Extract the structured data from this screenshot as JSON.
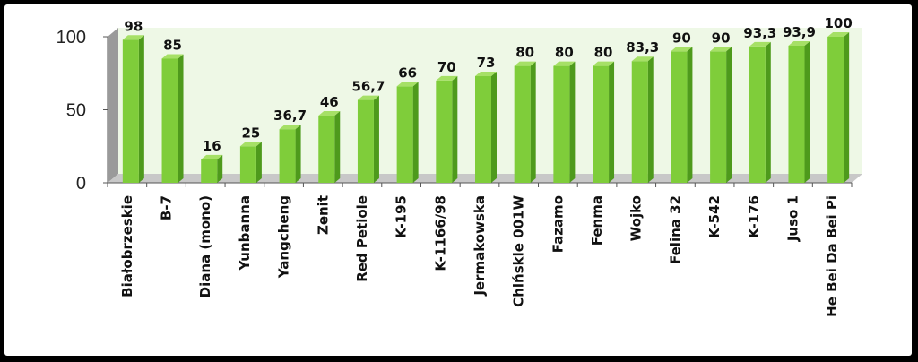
{
  "chart_data": {
    "type": "bar",
    "categories": [
      "Białobrzeskie",
      "B-7",
      "Diana (mono)",
      "Yunbanna",
      "Yangcheng",
      "Zenit",
      "Red Petiole",
      "K-195",
      "K-1166/98",
      "Jermakowska",
      "Chińskie 001W",
      "Fazamo",
      "Fenma",
      "Wojko",
      "Felina 32",
      "K-542",
      "K-176",
      "Juso 1",
      "He Bei Da Bei Pi"
    ],
    "values": [
      98,
      85,
      16,
      25,
      36.7,
      46,
      56.7,
      66,
      70,
      73,
      80,
      80,
      80,
      83.3,
      90,
      90,
      93.3,
      93.9,
      100
    ],
    "data_labels": [
      "98",
      "85",
      "16",
      "25",
      "36,7",
      "46",
      "56,7",
      "66",
      "70",
      "73",
      "80",
      "80",
      "80",
      "83,3",
      "90",
      "90",
      "93,3",
      "93,9",
      "100"
    ],
    "y_ticks": [
      "0",
      "50",
      "100"
    ],
    "ylim": [
      0,
      100
    ],
    "grid": false,
    "legend": "none",
    "title": "",
    "xlabel": "",
    "ylabel": "",
    "colors": {
      "bar_front": "#7fcd3a",
      "bar_side": "#4e9a1c",
      "bar_top": "#a6e066",
      "wall": "#eef8e6",
      "wall_side": "#9a9a9a",
      "floor": "#c8c8c8",
      "background": "#000000"
    }
  }
}
